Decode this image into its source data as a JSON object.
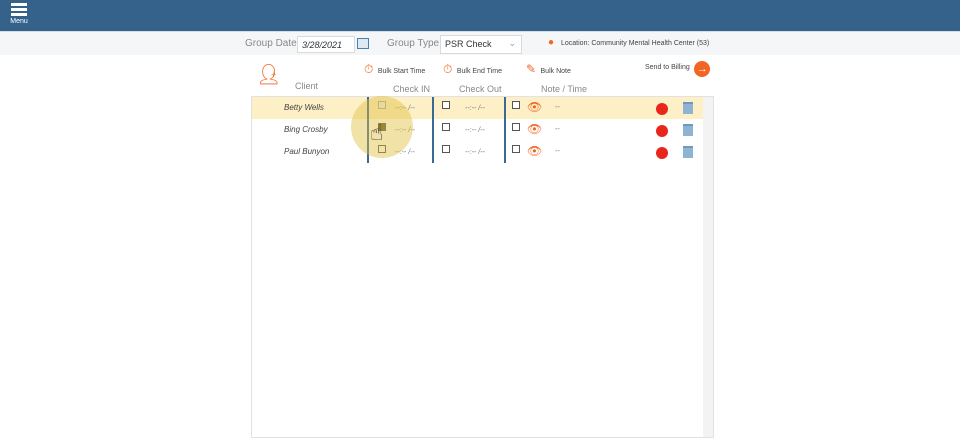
{
  "header": {
    "menu_label": "Menu",
    "bg": "#34628a"
  },
  "filters": {
    "group_date_label": "Group Date:",
    "group_date_value": "3/28/2021",
    "group_type_label": "Group Type:",
    "group_type_value": "PSR Check",
    "location": "Location: Community Mental Health Center (53)"
  },
  "actions": {
    "bulk_start": "Bulk Start Time",
    "bulk_end": "Bulk End Time",
    "bulk_note": "Bulk Note",
    "send_billing": "Send to Billing"
  },
  "columns": {
    "client": "Client",
    "check_in": "Check IN",
    "check_out": "Check Out",
    "note_time": "Note / Time"
  },
  "rows": [
    {
      "name": "Betty Wells",
      "check_in": "--:-- /--",
      "check_out": "--:-- /--",
      "note": "--",
      "selected": true,
      "in_checked": true
    },
    {
      "name": "Bing Crosby",
      "check_in": "--:-- /--",
      "check_out": "--:-- /--",
      "note": "--",
      "selected": false,
      "in_checked": false
    },
    {
      "name": "Paul Bunyon",
      "check_in": "--:-- /--",
      "check_out": "--:-- /--",
      "note": "--",
      "selected": false,
      "in_checked": false
    }
  ],
  "colors": {
    "accent": "#f26522",
    "separator": "#3a6a94",
    "selected_row": "#fdefc6",
    "clock": "#e8261b"
  }
}
